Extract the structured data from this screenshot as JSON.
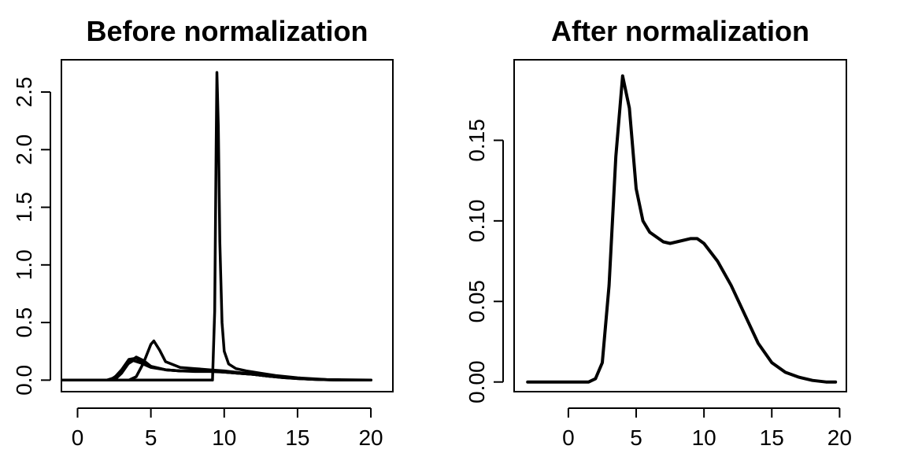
{
  "chart_data": [
    {
      "type": "line",
      "title": "Before normalization",
      "xlabel": "",
      "ylabel": "",
      "xlim": [
        -1.1,
        21.5
      ],
      "ylim": [
        -0.1,
        2.78
      ],
      "x_ticks": [
        "0",
        "5",
        "10",
        "15",
        "20"
      ],
      "y_ticks": [
        "0.0",
        "0.5",
        "1.0",
        "1.5",
        "2.0",
        "2.5"
      ],
      "grid": false,
      "legend": "none",
      "line_color": "#000000",
      "series": [
        {
          "x": [
            -1,
            2,
            2.5,
            3,
            3.5,
            4,
            4.5,
            5,
            6,
            7,
            8,
            9,
            10,
            11,
            12,
            13,
            14,
            15,
            16,
            17,
            18,
            20
          ],
          "y": [
            0,
            0,
            0.02,
            0.09,
            0.18,
            0.19,
            0.15,
            0.12,
            0.09,
            0.08,
            0.08,
            0.08,
            0.07,
            0.06,
            0.05,
            0.035,
            0.025,
            0.015,
            0.008,
            0.004,
            0.001,
            0
          ]
        },
        {
          "x": [
            -1,
            2.5,
            3,
            3.5,
            4,
            4.5,
            5,
            6,
            7,
            8,
            9,
            10,
            11,
            12,
            13,
            14,
            15,
            16,
            17,
            18,
            20
          ],
          "y": [
            0,
            0,
            0.06,
            0.15,
            0.2,
            0.17,
            0.12,
            0.09,
            0.08,
            0.08,
            0.08,
            0.07,
            0.06,
            0.05,
            0.035,
            0.025,
            0.015,
            0.008,
            0.004,
            0.001,
            0
          ]
        },
        {
          "x": [
            -1,
            2.2,
            2.8,
            3.3,
            3.8,
            4.3,
            5,
            6,
            7,
            8,
            9,
            10,
            11,
            12,
            13,
            14,
            15,
            16,
            17,
            18,
            20
          ],
          "y": [
            0,
            0,
            0.05,
            0.13,
            0.17,
            0.15,
            0.11,
            0.09,
            0.08,
            0.075,
            0.075,
            0.07,
            0.06,
            0.05,
            0.035,
            0.022,
            0.013,
            0.007,
            0.003,
            0.001,
            0
          ]
        },
        {
          "x": [
            -1,
            3.5,
            4,
            4.5,
            5,
            5.2,
            5.6,
            6,
            7,
            8,
            9,
            10,
            11,
            12,
            13,
            14,
            15,
            16,
            17,
            18,
            20
          ],
          "y": [
            0,
            0,
            0.03,
            0.15,
            0.31,
            0.34,
            0.26,
            0.16,
            0.11,
            0.1,
            0.09,
            0.08,
            0.065,
            0.05,
            0.035,
            0.022,
            0.013,
            0.007,
            0.003,
            0.001,
            0
          ]
        },
        {
          "x": [
            -1,
            9.2,
            9.35,
            9.45,
            9.5,
            9.6,
            9.7,
            9.85,
            10,
            10.3,
            10.8,
            11.5,
            12.5,
            13.5,
            15,
            17,
            20
          ],
          "y": [
            0,
            0,
            0.6,
            2.0,
            2.67,
            2.2,
            1.2,
            0.5,
            0.25,
            0.14,
            0.1,
            0.08,
            0.06,
            0.04,
            0.02,
            0.005,
            0
          ]
        }
      ]
    },
    {
      "type": "line",
      "title": "After normalization",
      "xlabel": "",
      "ylabel": "",
      "xlim": [
        -4,
        20.5
      ],
      "ylim": [
        -0.006,
        0.2
      ],
      "x_ticks": [
        "0",
        "5",
        "10",
        "15",
        "20"
      ],
      "y_ticks": [
        "0.00",
        "0.05",
        "0.10",
        "0.15"
      ],
      "grid": false,
      "legend": "none",
      "line_color": "#000000",
      "series": [
        {
          "x": [
            -3,
            1.5,
            2,
            2.5,
            3,
            3.5,
            4,
            4.5,
            5,
            5.5,
            6,
            7,
            7.5,
            8,
            9,
            9.5,
            10,
            11,
            12,
            13,
            14,
            15,
            16,
            17,
            18,
            19,
            19.7
          ],
          "y": [
            0,
            0,
            0.002,
            0.012,
            0.06,
            0.14,
            0.19,
            0.17,
            0.12,
            0.1,
            0.093,
            0.087,
            0.086,
            0.087,
            0.089,
            0.089,
            0.086,
            0.075,
            0.06,
            0.042,
            0.024,
            0.012,
            0.006,
            0.003,
            0.001,
            0,
            0
          ]
        }
      ]
    }
  ]
}
